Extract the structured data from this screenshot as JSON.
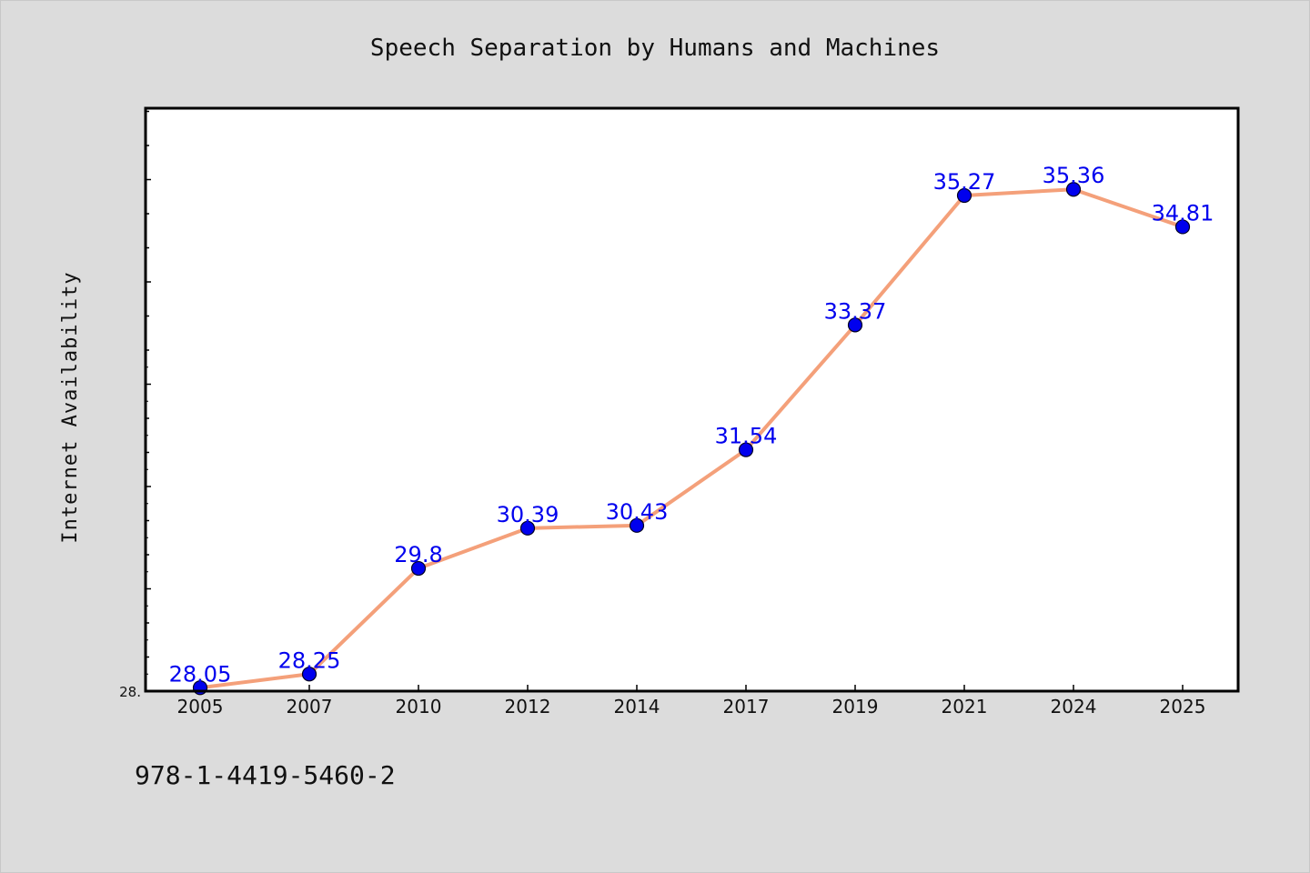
{
  "chart_data": {
    "type": "line",
    "title": "Speech Separation by Humans and Machines",
    "ylabel": "Internet Availability",
    "xlabel": "",
    "categories": [
      "2005",
      "2007",
      "2010",
      "2012",
      "2014",
      "2017",
      "2019",
      "2021",
      "2024",
      "2025"
    ],
    "series": [
      {
        "values": [
          28.05,
          28.25,
          29.8,
          30.39,
          30.43,
          31.54,
          33.37,
          35.27,
          35.36,
          34.81
        ],
        "data_labels": [
          "28.05",
          "28.25",
          "29.8",
          "30.39",
          "30.43",
          "31.54",
          "33.37",
          "35.27",
          "35.36",
          "34.81"
        ]
      }
    ],
    "yaxis_visible_tick_label": "28.",
    "ylim": [
      28.0,
      36.55
    ],
    "grid": false,
    "legend": "none",
    "colors": {
      "line": "#f4a07a",
      "marker": "#0000ee",
      "label": "#0000ee",
      "background": "#dcdcdc",
      "plot_background": "#ffffff"
    }
  },
  "footer": {
    "isbn": "978-1-4419-5460-2"
  }
}
